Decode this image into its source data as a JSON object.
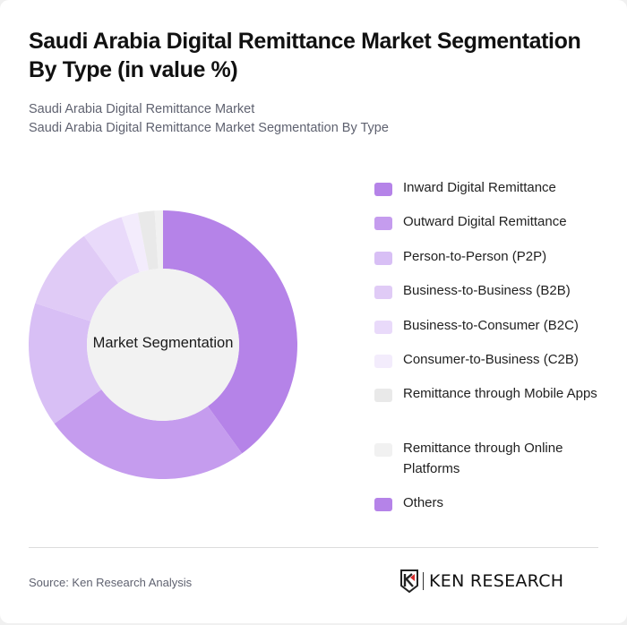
{
  "header": {
    "title": "Saudi Arabia Digital Remittance Market Segmentation By Type (in value %)",
    "subtitle_line1": "Saudi Arabia Digital Remittance Market",
    "subtitle_line2": "Saudi Arabia Digital Remittance Market Segmentation By Type"
  },
  "chart": {
    "center_label": "Market Segmentation"
  },
  "legend": {
    "items": [
      {
        "label": "Inward Digital Remittance",
        "color": "#b583e8"
      },
      {
        "label": "Outward Digital Remittance",
        "color": "#c59cee"
      },
      {
        "label": "Person-to-Person (P2P)",
        "color": "#d8bff5"
      },
      {
        "label": "Business-to-Business (B2B)",
        "color": "#e0cbf6"
      },
      {
        "label": "Business-to-Consumer (B2C)",
        "color": "#e9dafa"
      },
      {
        "label": "Consumer-to-Business (C2B)",
        "color": "#f3ecfc"
      },
      {
        "label": "Remittance through Mobile Apps",
        "color": "#e9e9e9"
      },
      {
        "label": "Remittance through Online Platforms",
        "color": "#f1f1f1"
      },
      {
        "label": "Others",
        "color": "#b583e8"
      }
    ]
  },
  "footer": {
    "source": "Source: Ken Research Analysis",
    "logo_text": "KEN RESEARCH"
  },
  "chart_data": {
    "type": "pie",
    "subtype": "donut",
    "title": "Saudi Arabia Digital Remittance Market Segmentation By Type (in value %)",
    "center_label": "Market Segmentation",
    "categories": [
      "Inward Digital Remittance",
      "Outward Digital Remittance",
      "Person-to-Person (P2P)",
      "Business-to-Business (B2B)",
      "Business-to-Consumer (B2C)",
      "Consumer-to-Business (C2B)",
      "Remittance through Mobile Apps",
      "Remittance through Online Platforms",
      "Others"
    ],
    "values": [
      40,
      25,
      15,
      10,
      5,
      2,
      2,
      1,
      0
    ],
    "colors": [
      "#b583e8",
      "#c59cee",
      "#d8bff5",
      "#e0cbf6",
      "#e9dafa",
      "#f3ecfc",
      "#e9e9e9",
      "#f1f1f1",
      "#b583e8"
    ],
    "legend_position": "right",
    "unit": "%"
  }
}
